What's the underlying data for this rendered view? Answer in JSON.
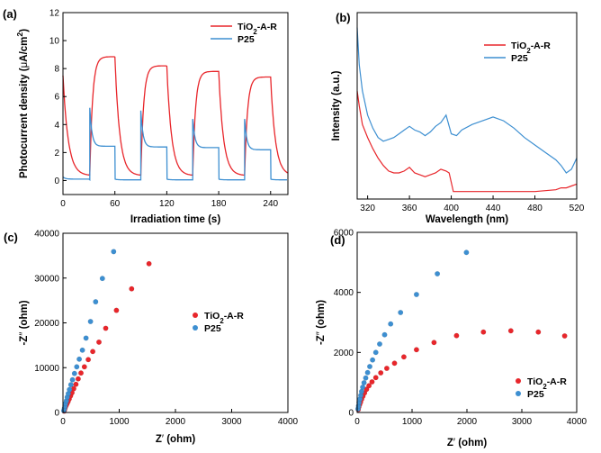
{
  "chart_data": [
    {
      "panel": "(a)",
      "type": "line",
      "xlabel": "Irradiation time (s)",
      "ylabel_parts": [
        "Photocurrent density (",
        "μ",
        "A/cm",
        "2",
        ")"
      ],
      "xlim": [
        0,
        260
      ],
      "ylim": [
        -1,
        12
      ],
      "xticks": [
        0,
        60,
        120,
        180,
        240
      ],
      "yticks": [
        0,
        2,
        4,
        6,
        8,
        10,
        12
      ],
      "legend": [
        {
          "parts": [
            "TiO",
            "2",
            "-A-R"
          ],
          "color": "#e8262b"
        },
        {
          "parts": [
            "P25"
          ],
          "color": "#3d8fd1"
        }
      ],
      "series": [
        {
          "name": "TiO2-A-R",
          "color": "#e8262b",
          "off_start": 7.5,
          "off_floor": 0.35,
          "cycles": [
            {
              "on": 31,
              "off": 60,
              "peak": 8.85
            },
            {
              "on": 90,
              "off": 120,
              "peak": 8.2
            },
            {
              "on": 150,
              "off": 180,
              "peak": 7.8
            },
            {
              "on": 210,
              "off": 240,
              "peak": 7.4
            }
          ]
        },
        {
          "name": "P25",
          "color": "#3d8fd1",
          "off_start": 0.25,
          "off_floor": 0.05,
          "cycles": [
            {
              "on": 31,
              "off": 60,
              "peak": 5.2,
              "plateau": 2.45
            },
            {
              "on": 90,
              "off": 120,
              "peak": 5.0,
              "plateau": 2.4
            },
            {
              "on": 150,
              "off": 180,
              "peak": 4.4,
              "plateau": 2.35
            },
            {
              "on": 210,
              "off": 240,
              "peak": 4.4,
              "plateau": 2.2
            }
          ]
        }
      ]
    },
    {
      "panel": "(b)",
      "type": "line",
      "xlabel": "Wavelength (nm)",
      "ylabel": "Intensity (a.u.)",
      "xlim": [
        310,
        520
      ],
      "ylim": [
        0,
        1.0
      ],
      "xticks": [
        320,
        360,
        400,
        440,
        480,
        520
      ],
      "legend": [
        {
          "parts": [
            "TiO",
            "2",
            "-A-R"
          ],
          "color": "#e8262b"
        },
        {
          "parts": [
            "P25"
          ],
          "color": "#3d8fd1"
        }
      ],
      "series": [
        {
          "name": "TiO2-A-R",
          "color": "#e8262b",
          "x": [
            310,
            312,
            315,
            320,
            325,
            330,
            335,
            340,
            345,
            350,
            355,
            360,
            365,
            370,
            375,
            380,
            385,
            390,
            395,
            398,
            402,
            410,
            420,
            440,
            460,
            480,
            500,
            505,
            510,
            515,
            520
          ],
          "y": [
            0.58,
            0.5,
            0.4,
            0.33,
            0.27,
            0.22,
            0.18,
            0.15,
            0.14,
            0.14,
            0.15,
            0.17,
            0.14,
            0.13,
            0.12,
            0.13,
            0.14,
            0.16,
            0.15,
            0.14,
            0.04,
            0.04,
            0.04,
            0.04,
            0.04,
            0.04,
            0.05,
            0.06,
            0.06,
            0.07,
            0.08
          ]
        },
        {
          "name": "P25",
          "color": "#3d8fd1",
          "x": [
            310,
            312,
            315,
            320,
            325,
            330,
            335,
            340,
            345,
            350,
            355,
            360,
            365,
            370,
            375,
            380,
            385,
            390,
            395,
            400,
            405,
            410,
            420,
            430,
            440,
            450,
            460,
            470,
            480,
            490,
            500,
            505,
            510,
            515,
            520
          ],
          "y": [
            0.92,
            0.72,
            0.58,
            0.45,
            0.38,
            0.33,
            0.31,
            0.32,
            0.33,
            0.35,
            0.37,
            0.39,
            0.37,
            0.36,
            0.34,
            0.36,
            0.39,
            0.41,
            0.45,
            0.35,
            0.34,
            0.37,
            0.4,
            0.42,
            0.44,
            0.42,
            0.38,
            0.33,
            0.29,
            0.25,
            0.21,
            0.18,
            0.14,
            0.16,
            0.22
          ]
        }
      ]
    },
    {
      "panel": "(c)",
      "type": "scatter",
      "xlabel_parts": [
        "Z",
        "′",
        " (ohm)"
      ],
      "ylabel_parts": [
        "-Z",
        "″",
        " (ohm)"
      ],
      "xlim": [
        0,
        4000
      ],
      "ylim": [
        0,
        40000
      ],
      "xticks": [
        0,
        1000,
        2000,
        3000,
        4000
      ],
      "yticks": [
        0,
        10000,
        20000,
        30000,
        40000
      ],
      "legend": [
        {
          "parts": [
            "TiO",
            "2",
            "-A-R"
          ],
          "color": "#e8262b"
        },
        {
          "parts": [
            "P25"
          ],
          "color": "#3d8fd1"
        }
      ],
      "series": [
        {
          "name": "TiO2-A-R",
          "color": "#e8262b",
          "x": [
            20,
            30,
            40,
            55,
            70,
            90,
            110,
            135,
            160,
            190,
            230,
            270,
            320,
            380,
            450,
            530,
            640,
            760,
            950,
            1220,
            1530
          ],
          "y": [
            300,
            700,
            1100,
            1500,
            1900,
            2400,
            3000,
            3700,
            4400,
            5300,
            6300,
            7500,
            8800,
            10200,
            11800,
            13600,
            15700,
            18800,
            22800,
            27600,
            33200
          ]
        },
        {
          "name": "P25",
          "color": "#3d8fd1",
          "x": [
            15,
            25,
            35,
            45,
            60,
            75,
            95,
            115,
            140,
            170,
            205,
            245,
            290,
            345,
            410,
            490,
            580,
            700,
            900
          ],
          "y": [
            400,
            900,
            1400,
            2000,
            2600,
            3400,
            4200,
            5100,
            6200,
            7300,
            8700,
            10200,
            11900,
            13900,
            16600,
            20300,
            24700,
            29900,
            35900
          ]
        }
      ]
    },
    {
      "panel": "(d)",
      "type": "scatter",
      "xlabel_parts": [
        "Z",
        "′",
        " (ohm)"
      ],
      "ylabel_parts": [
        "-Z",
        "″",
        " (ohm)"
      ],
      "xlim": [
        0,
        4000
      ],
      "ylim": [
        0,
        6000
      ],
      "xticks": [
        0,
        1000,
        2000,
        3000,
        4000
      ],
      "yticks": [
        0,
        2000,
        4000,
        6000
      ],
      "legend": [
        {
          "parts": [
            "TiO",
            "2",
            "-A-R"
          ],
          "color": "#e8262b"
        },
        {
          "parts": [
            "P25"
          ],
          "color": "#3d8fd1"
        }
      ],
      "series": [
        {
          "name": "TiO2-A-R",
          "color": "#e8262b",
          "x": [
            20,
            30,
            45,
            60,
            80,
            105,
            135,
            170,
            215,
            270,
            340,
            430,
            540,
            680,
            850,
            1080,
            1400,
            1810,
            2300,
            2800,
            3300,
            3780
          ],
          "y": [
            100,
            180,
            260,
            340,
            440,
            540,
            650,
            770,
            890,
            1020,
            1160,
            1320,
            1470,
            1640,
            1850,
            2090,
            2330,
            2560,
            2680,
            2720,
            2680,
            2550
          ]
        },
        {
          "name": "P25",
          "color": "#3d8fd1",
          "x": [
            15,
            25,
            35,
            50,
            65,
            80,
            100,
            125,
            155,
            190,
            230,
            280,
            340,
            410,
            500,
            610,
            790,
            1080,
            1460,
            1990
          ],
          "y": [
            120,
            220,
            330,
            450,
            570,
            700,
            840,
            990,
            1150,
            1330,
            1530,
            1750,
            2000,
            2280,
            2590,
            2950,
            3330,
            3930,
            4620,
            5330
          ]
        }
      ]
    }
  ]
}
